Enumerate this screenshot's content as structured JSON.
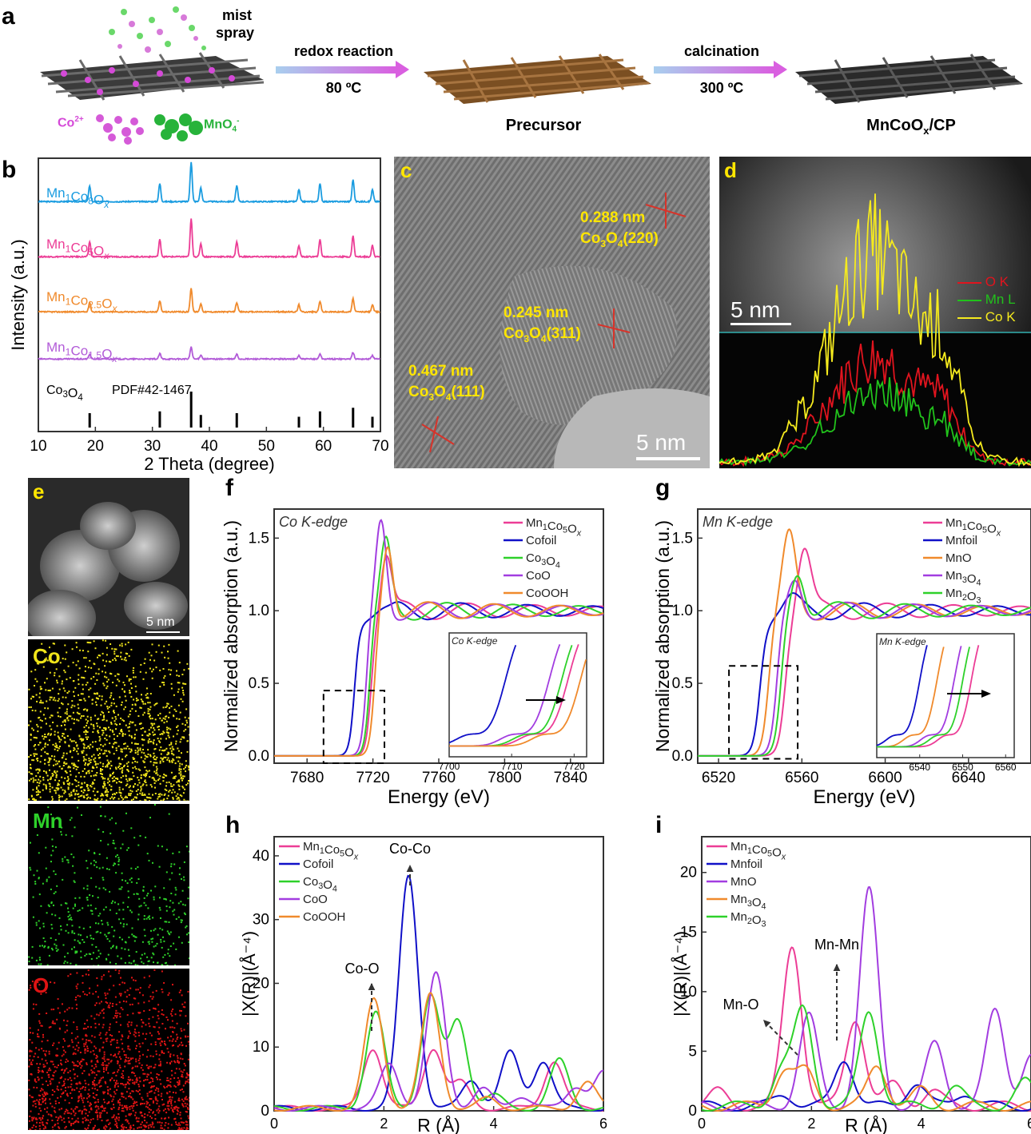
{
  "panels": {
    "a": "a",
    "b": "b",
    "c": "c",
    "d": "d",
    "e": "e",
    "f": "f",
    "g": "g",
    "h": "h",
    "i": "i"
  },
  "scheme": {
    "mist_line1": "mist",
    "mist_line2": "spray",
    "ion_co": "Co",
    "ion_co_sup": "2+",
    "ion_mn": "MnO",
    "ion_mn_sub": "4",
    "ion_mn_sup": "-",
    "step1_label": "redox reaction",
    "step1_temp": "80 ºC",
    "step2_label": "calcination",
    "step2_temp": "300 ºC",
    "precursor": "Precursor",
    "product_main": "MnCoO",
    "product_sub": "x",
    "product_tail": "/CP",
    "colors": {
      "arrow_start": "#a9cfee",
      "arrow_end": "#d95fe0",
      "brown": "#8a5a2b"
    }
  },
  "panel_c": {
    "d1": "0.288 nm",
    "p1": "Co",
    "p1s": "3",
    "p1b": "O",
    "p1bs": "4",
    "p1c": "(220)",
    "d2": "0.245 nm",
    "p2": "Co",
    "p2s": "3",
    "p2b": "O",
    "p2bs": "4",
    "p2c": "(311)",
    "d3": "0.467 nm",
    "p3": "Co",
    "p3s": "3",
    "p3b": "O",
    "p3bs": "4",
    "p3c": "(111)",
    "scale": "5 nm"
  },
  "panel_d": {
    "scale": "5 nm",
    "legend": [
      {
        "name": "O K",
        "color": "#e0141e"
      },
      {
        "name": "Mn L",
        "color": "#21c21b"
      },
      {
        "name": "Co K",
        "color": "#f5ea1e"
      }
    ]
  },
  "panel_e": {
    "scale": "5 nm",
    "maps": [
      {
        "name": "Co",
        "color": "#f0e41a"
      },
      {
        "name": "Mn",
        "color": "#2ed12a"
      },
      {
        "name": "O",
        "color": "#e01414"
      }
    ]
  },
  "chart_data": [
    {
      "id": "b",
      "type": "line",
      "xlabel": "2 Theta (degree)",
      "ylabel": "Intensity (a.u.)",
      "xlim": [
        10,
        70
      ],
      "xticks": [
        10,
        20,
        30,
        40,
        50,
        60,
        70
      ],
      "reference_label": "Co3O4 PDF#42-1467",
      "reference_peaks": [
        19.0,
        31.3,
        36.8,
        38.5,
        44.8,
        55.7,
        59.4,
        65.2,
        68.6
      ],
      "reference_heights": [
        0.4,
        0.45,
        1.0,
        0.35,
        0.4,
        0.3,
        0.45,
        0.55,
        0.3
      ],
      "series": [
        {
          "name": "Mn1Co8Ox",
          "color": "#1a9ce0",
          "offset": 3,
          "scale": 1.0
        },
        {
          "name": "Mn1Co5Ox",
          "color": "#ec3d96",
          "offset": 2,
          "scale": 0.95
        },
        {
          "name": "Mn1Co2.5Ox",
          "color": "#f08a2c",
          "offset": 1,
          "scale": 0.6
        },
        {
          "name": "Mn1Co1.5Ox",
          "color": "#b25bd8",
          "offset": 0,
          "scale": 0.3
        }
      ]
    },
    {
      "id": "f",
      "type": "line",
      "annotation": "Co K-edge",
      "xlabel": "Energy (eV)",
      "ylabel": "Normalized absorption (a.u.)",
      "xlim": [
        7660,
        7860
      ],
      "ylim": [
        -0.05,
        1.7
      ],
      "xticks": [
        7680,
        7720,
        7760,
        7800,
        7840
      ],
      "yticks": [
        0.0,
        0.5,
        1.0,
        1.5
      ],
      "series": [
        {
          "name": "Mn1Co5Ox",
          "color": "#ec3d96",
          "e0": 7719,
          "peak_x": 7728,
          "peak_y": 1.38
        },
        {
          "name": "Co foil",
          "color": "#1010c8",
          "e0": 7709,
          "peak_x": 7730,
          "peak_y": 0.98
        },
        {
          "name": "Co3O4",
          "color": "#2ed12a",
          "e0": 7718,
          "peak_x": 7728,
          "peak_y": 1.45
        },
        {
          "name": "CoO",
          "color": "#a23de0",
          "e0": 7716,
          "peak_x": 7725,
          "peak_y": 1.62
        },
        {
          "name": "CoOOH",
          "color": "#f08a2c",
          "e0": 7721,
          "peak_x": 7729,
          "peak_y": 1.5
        }
      ],
      "inset": {
        "label": "Co K-edge",
        "xlim": [
          7700,
          7722
        ],
        "xticks": [
          7700,
          7710,
          7720
        ]
      }
    },
    {
      "id": "g",
      "type": "line",
      "annotation": "Mn K-edge",
      "xlabel": "Energy (eV)",
      "ylabel": "Normalized absorption (a.u.)",
      "xlim": [
        6510,
        6670
      ],
      "ylim": [
        -0.05,
        1.7
      ],
      "xticks": [
        6520,
        6560,
        6600,
        6640
      ],
      "yticks": [
        0.0,
        0.5,
        1.0,
        1.5
      ],
      "series": [
        {
          "name": "Mn1Co5Ox",
          "color": "#ec3d96",
          "e0": 6552,
          "peak_x": 6561,
          "peak_y": 1.43
        },
        {
          "name": "Mn foil",
          "color": "#1010c8",
          "e0": 6540,
          "peak_x": 6555,
          "peak_y": 1.06
        },
        {
          "name": "MnO",
          "color": "#f08a2c",
          "e0": 6544,
          "peak_x": 6554,
          "peak_y": 1.5
        },
        {
          "name": "Mn3O4",
          "color": "#a23de0",
          "e0": 6548,
          "peak_x": 6557,
          "peak_y": 1.2
        },
        {
          "name": "Mn2O3",
          "color": "#2ed12a",
          "e0": 6550,
          "peak_x": 6558,
          "peak_y": 1.3
        }
      ],
      "inset": {
        "label": "Mn K-edge",
        "xlim": [
          6530,
          6562
        ],
        "xticks": [
          6540,
          6550,
          6560
        ]
      }
    },
    {
      "id": "h",
      "type": "line",
      "xlabel": "R (Å)",
      "ylabel": "|X(R)|(Å⁻⁴)",
      "xlim": [
        0,
        6
      ],
      "ylim": [
        0,
        43
      ],
      "xticks": [
        0,
        2,
        4,
        6
      ],
      "yticks": [
        0,
        10,
        20,
        30,
        40
      ],
      "annotations": [
        "Co-Co",
        "Co-O"
      ],
      "series": [
        {
          "name": "Mn1Co5Ox",
          "color": "#ec3d96",
          "peaks": [
            [
              1.8,
              9.5
            ],
            [
              2.9,
              9.5
            ],
            [
              3.4,
              4
            ],
            [
              5.1,
              7.5
            ]
          ]
        },
        {
          "name": "Co foil",
          "color": "#1010c8",
          "peaks": [
            [
              2.45,
              36.5
            ],
            [
              3.6,
              4.5
            ],
            [
              4.3,
              8.7
            ],
            [
              4.9,
              7.5
            ]
          ]
        },
        {
          "name": "Co3O4",
          "color": "#2ed12a",
          "peaks": [
            [
              1.85,
              15
            ],
            [
              2.85,
              17.5
            ],
            [
              3.35,
              13.8
            ],
            [
              4.0,
              2
            ],
            [
              5.2,
              7.5
            ]
          ]
        },
        {
          "name": "CoO",
          "color": "#a23de0",
          "peaks": [
            [
              2.1,
              7
            ],
            [
              2.95,
              21
            ],
            [
              3.8,
              3
            ],
            [
              4.5,
              2
            ],
            [
              5.5,
              3.5
            ],
            [
              6.0,
              5.5
            ]
          ]
        },
        {
          "name": "CoOOH",
          "color": "#f08a2c",
          "peaks": [
            [
              1.82,
              17
            ],
            [
              2.85,
              17.8
            ],
            [
              3.9,
              1.5
            ],
            [
              5.7,
              4
            ]
          ]
        }
      ]
    },
    {
      "id": "i",
      "type": "line",
      "xlabel": "R (Å)",
      "ylabel": "|X(R)|(Å⁻⁴)",
      "xlim": [
        0,
        6
      ],
      "ylim": [
        0,
        23
      ],
      "xticks": [
        0,
        2,
        4,
        6
      ],
      "yticks": [
        0,
        5,
        10,
        15,
        20
      ],
      "annotations": [
        "Mn-Mn",
        "Mn-O"
      ],
      "series": [
        {
          "name": "Mn1Co5Ox",
          "color": "#ec3d96",
          "peaks": [
            [
              0.3,
              1.2
            ],
            [
              1.65,
              13.5
            ],
            [
              2.8,
              7.4
            ],
            [
              3.5,
              1.8
            ],
            [
              4.2,
              1.3
            ]
          ]
        },
        {
          "name": "Mn foil",
          "color": "#1010c8",
          "peaks": [
            [
              1.5,
              1.0
            ],
            [
              2.6,
              4.0
            ],
            [
              3.9,
              2.0
            ],
            [
              4.8,
              1.2
            ]
          ]
        },
        {
          "name": "MnO",
          "color": "#a23de0",
          "peaks": [
            [
              1.95,
              7.5
            ],
            [
              3.05,
              18
            ],
            [
              4.25,
              5.2
            ],
            [
              5.35,
              8.0
            ],
            [
              6.0,
              4.2
            ]
          ]
        },
        {
          "name": "Mn3O4",
          "color": "#f08a2c",
          "peaks": [
            [
              1.5,
              3.0
            ],
            [
              1.9,
              2.8
            ],
            [
              3.2,
              3.4
            ],
            [
              4.0,
              1.3
            ]
          ]
        },
        {
          "name": "Mn2O3",
          "color": "#2ed12a",
          "peaks": [
            [
              1.45,
              3.0
            ],
            [
              1.85,
              8.0
            ],
            [
              3.05,
              8.0
            ],
            [
              4.6,
              1.6
            ],
            [
              5.9,
              2.0
            ]
          ]
        }
      ]
    }
  ]
}
